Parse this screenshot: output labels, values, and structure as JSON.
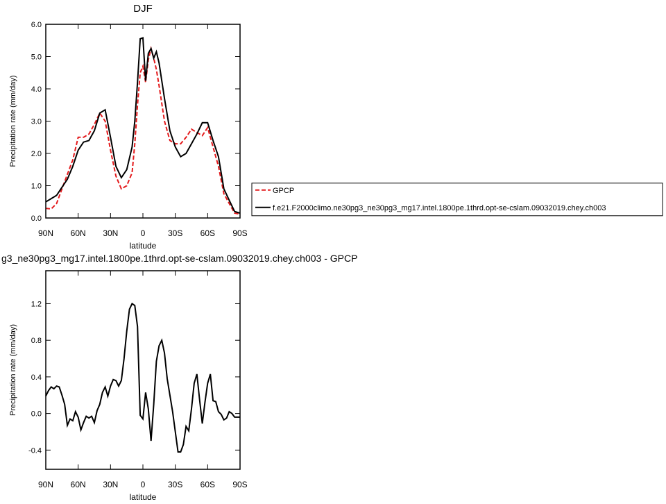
{
  "chart_data": [
    {
      "type": "line",
      "title": "DJF",
      "xlabel": "latitude",
      "ylabel": "Precipitation rate (mm/day)",
      "x": [
        90,
        85,
        80,
        75,
        70,
        65,
        60,
        55,
        50,
        45,
        40,
        35,
        30,
        25,
        20,
        15,
        10,
        7.5,
        5,
        2.5,
        0,
        -2.5,
        -5,
        -7.5,
        -10,
        -12.5,
        -15,
        -20,
        -25,
        -30,
        -35,
        -40,
        -45,
        -50,
        -55,
        -60,
        -65,
        -70,
        -75,
        -80,
        -85,
        -90
      ],
      "series": [
        {
          "name": "GPCP",
          "color": "#e41a1c",
          "dashed": true,
          "values": [
            0.3,
            0.28,
            0.45,
            0.9,
            1.35,
            1.8,
            2.5,
            2.5,
            2.6,
            2.9,
            3.25,
            3.0,
            2.1,
            1.3,
            0.9,
            1.0,
            1.4,
            2.3,
            3.5,
            4.5,
            4.7,
            4.2,
            4.9,
            5.25,
            4.95,
            4.6,
            4.1,
            3.0,
            2.4,
            2.3,
            2.3,
            2.5,
            2.75,
            2.65,
            2.55,
            2.8,
            2.2,
            1.6,
            0.75,
            0.45,
            0.15,
            0.12
          ]
        },
        {
          "name": "f.e21.F2000climo.ne30pg3_ne30pg3_mg17.intel.1800pe.1thrd.opt-se-cslam.09032019.chey.ch003",
          "color": "#000000",
          "dashed": false,
          "values": [
            0.5,
            0.6,
            0.7,
            0.95,
            1.2,
            1.6,
            2.1,
            2.35,
            2.4,
            2.7,
            3.25,
            3.35,
            2.5,
            1.6,
            1.25,
            1.5,
            2.2,
            3.0,
            4.2,
            5.55,
            5.58,
            4.25,
            5.1,
            5.25,
            4.95,
            5.15,
            4.8,
            3.7,
            2.7,
            2.2,
            1.9,
            2.0,
            2.3,
            2.6,
            2.95,
            2.95,
            2.4,
            1.9,
            0.9,
            0.55,
            0.2,
            0.15
          ]
        }
      ],
      "xlim": [
        90,
        -90
      ],
      "xticks": [
        {
          "value": 90,
          "label": "90N"
        },
        {
          "value": 60,
          "label": "60N"
        },
        {
          "value": 30,
          "label": "30N"
        },
        0,
        {
          "value": -30,
          "label": "30S"
        },
        {
          "value": -60,
          "label": "60S"
        },
        {
          "value": -90,
          "label": "90S"
        }
      ],
      "ylim": [
        0,
        6
      ],
      "yticks": [
        {
          "value": 0,
          "label": "0.0"
        },
        {
          "value": 1,
          "label": "1.0"
        },
        {
          "value": 2,
          "label": "2.0"
        },
        {
          "value": 3,
          "label": "3.0"
        },
        {
          "value": 4,
          "label": "4.0"
        },
        {
          "value": 5,
          "label": "5.0"
        },
        {
          "value": 6,
          "label": "6.0"
        }
      ],
      "legend": "right"
    },
    {
      "type": "line",
      "title": "g3_ne30pg3_mg17.intel.1800pe.1thrd.opt-se-cslam.09032019.chey.ch003 - GPCP",
      "xlabel": "latitude",
      "ylabel": "Precipitation rate (mm/day)",
      "x": [
        90,
        87.5,
        85,
        82.5,
        80,
        77.5,
        75,
        72.5,
        70,
        67.5,
        65,
        62.5,
        60,
        57.5,
        55,
        52.5,
        50,
        47.5,
        45,
        42.5,
        40,
        37.5,
        35,
        32.5,
        30,
        27.5,
        25,
        22.5,
        20,
        17.5,
        15,
        12.5,
        10,
        7.5,
        5,
        2.5,
        0,
        -2.5,
        -5,
        -7.5,
        -10,
        -12.5,
        -15,
        -17.5,
        -20,
        -22.5,
        -25,
        -27.5,
        -30,
        -32.5,
        -35,
        -37.5,
        -40,
        -42.5,
        -45,
        -47.5,
        -50,
        -52.5,
        -55,
        -57.5,
        -60,
        -62.5,
        -65,
        -67.5,
        -70,
        -72.5,
        -75,
        -77.5,
        -80,
        -82.5,
        -85,
        -87.5,
        -90
      ],
      "series": [
        {
          "color": "#000000",
          "values": [
            0.19,
            0.25,
            0.29,
            0.27,
            0.3,
            0.29,
            0.2,
            0.1,
            -0.13,
            -0.06,
            -0.08,
            0.02,
            -0.04,
            -0.18,
            -0.1,
            -0.03,
            -0.05,
            -0.03,
            -0.1,
            0.03,
            0.1,
            0.23,
            0.29,
            0.19,
            0.3,
            0.37,
            0.36,
            0.3,
            0.36,
            0.6,
            0.9,
            1.14,
            1.2,
            1.18,
            0.95,
            -0.02,
            -0.06,
            0.23,
            0.05,
            -0.3,
            0.1,
            0.57,
            0.74,
            0.8,
            0.66,
            0.38,
            0.2,
            0.02,
            -0.2,
            -0.42,
            -0.42,
            -0.34,
            -0.14,
            -0.19,
            0.05,
            0.33,
            0.43,
            0.15,
            -0.11,
            0.12,
            0.33,
            0.43,
            0.14,
            0.13,
            0.02,
            -0.01,
            -0.07,
            -0.05,
            0.02,
            0,
            -0.04,
            -0.04,
            -0.04
          ]
        }
      ],
      "xlim": [
        90,
        -90
      ],
      "xticks": [
        {
          "value": 90,
          "label": "90N"
        },
        {
          "value": 60,
          "label": "60N"
        },
        {
          "value": 30,
          "label": "30N"
        },
        0,
        {
          "value": -30,
          "label": "30S"
        },
        {
          "value": -60,
          "label": "60S"
        },
        {
          "value": -90,
          "label": "90S"
        }
      ],
      "ylim": [
        -0.61,
        1.56
      ],
      "yticks": [
        -0.4,
        {
          "value": 0,
          "label": "0.0"
        },
        0.4,
        0.8,
        1.2
      ]
    }
  ]
}
